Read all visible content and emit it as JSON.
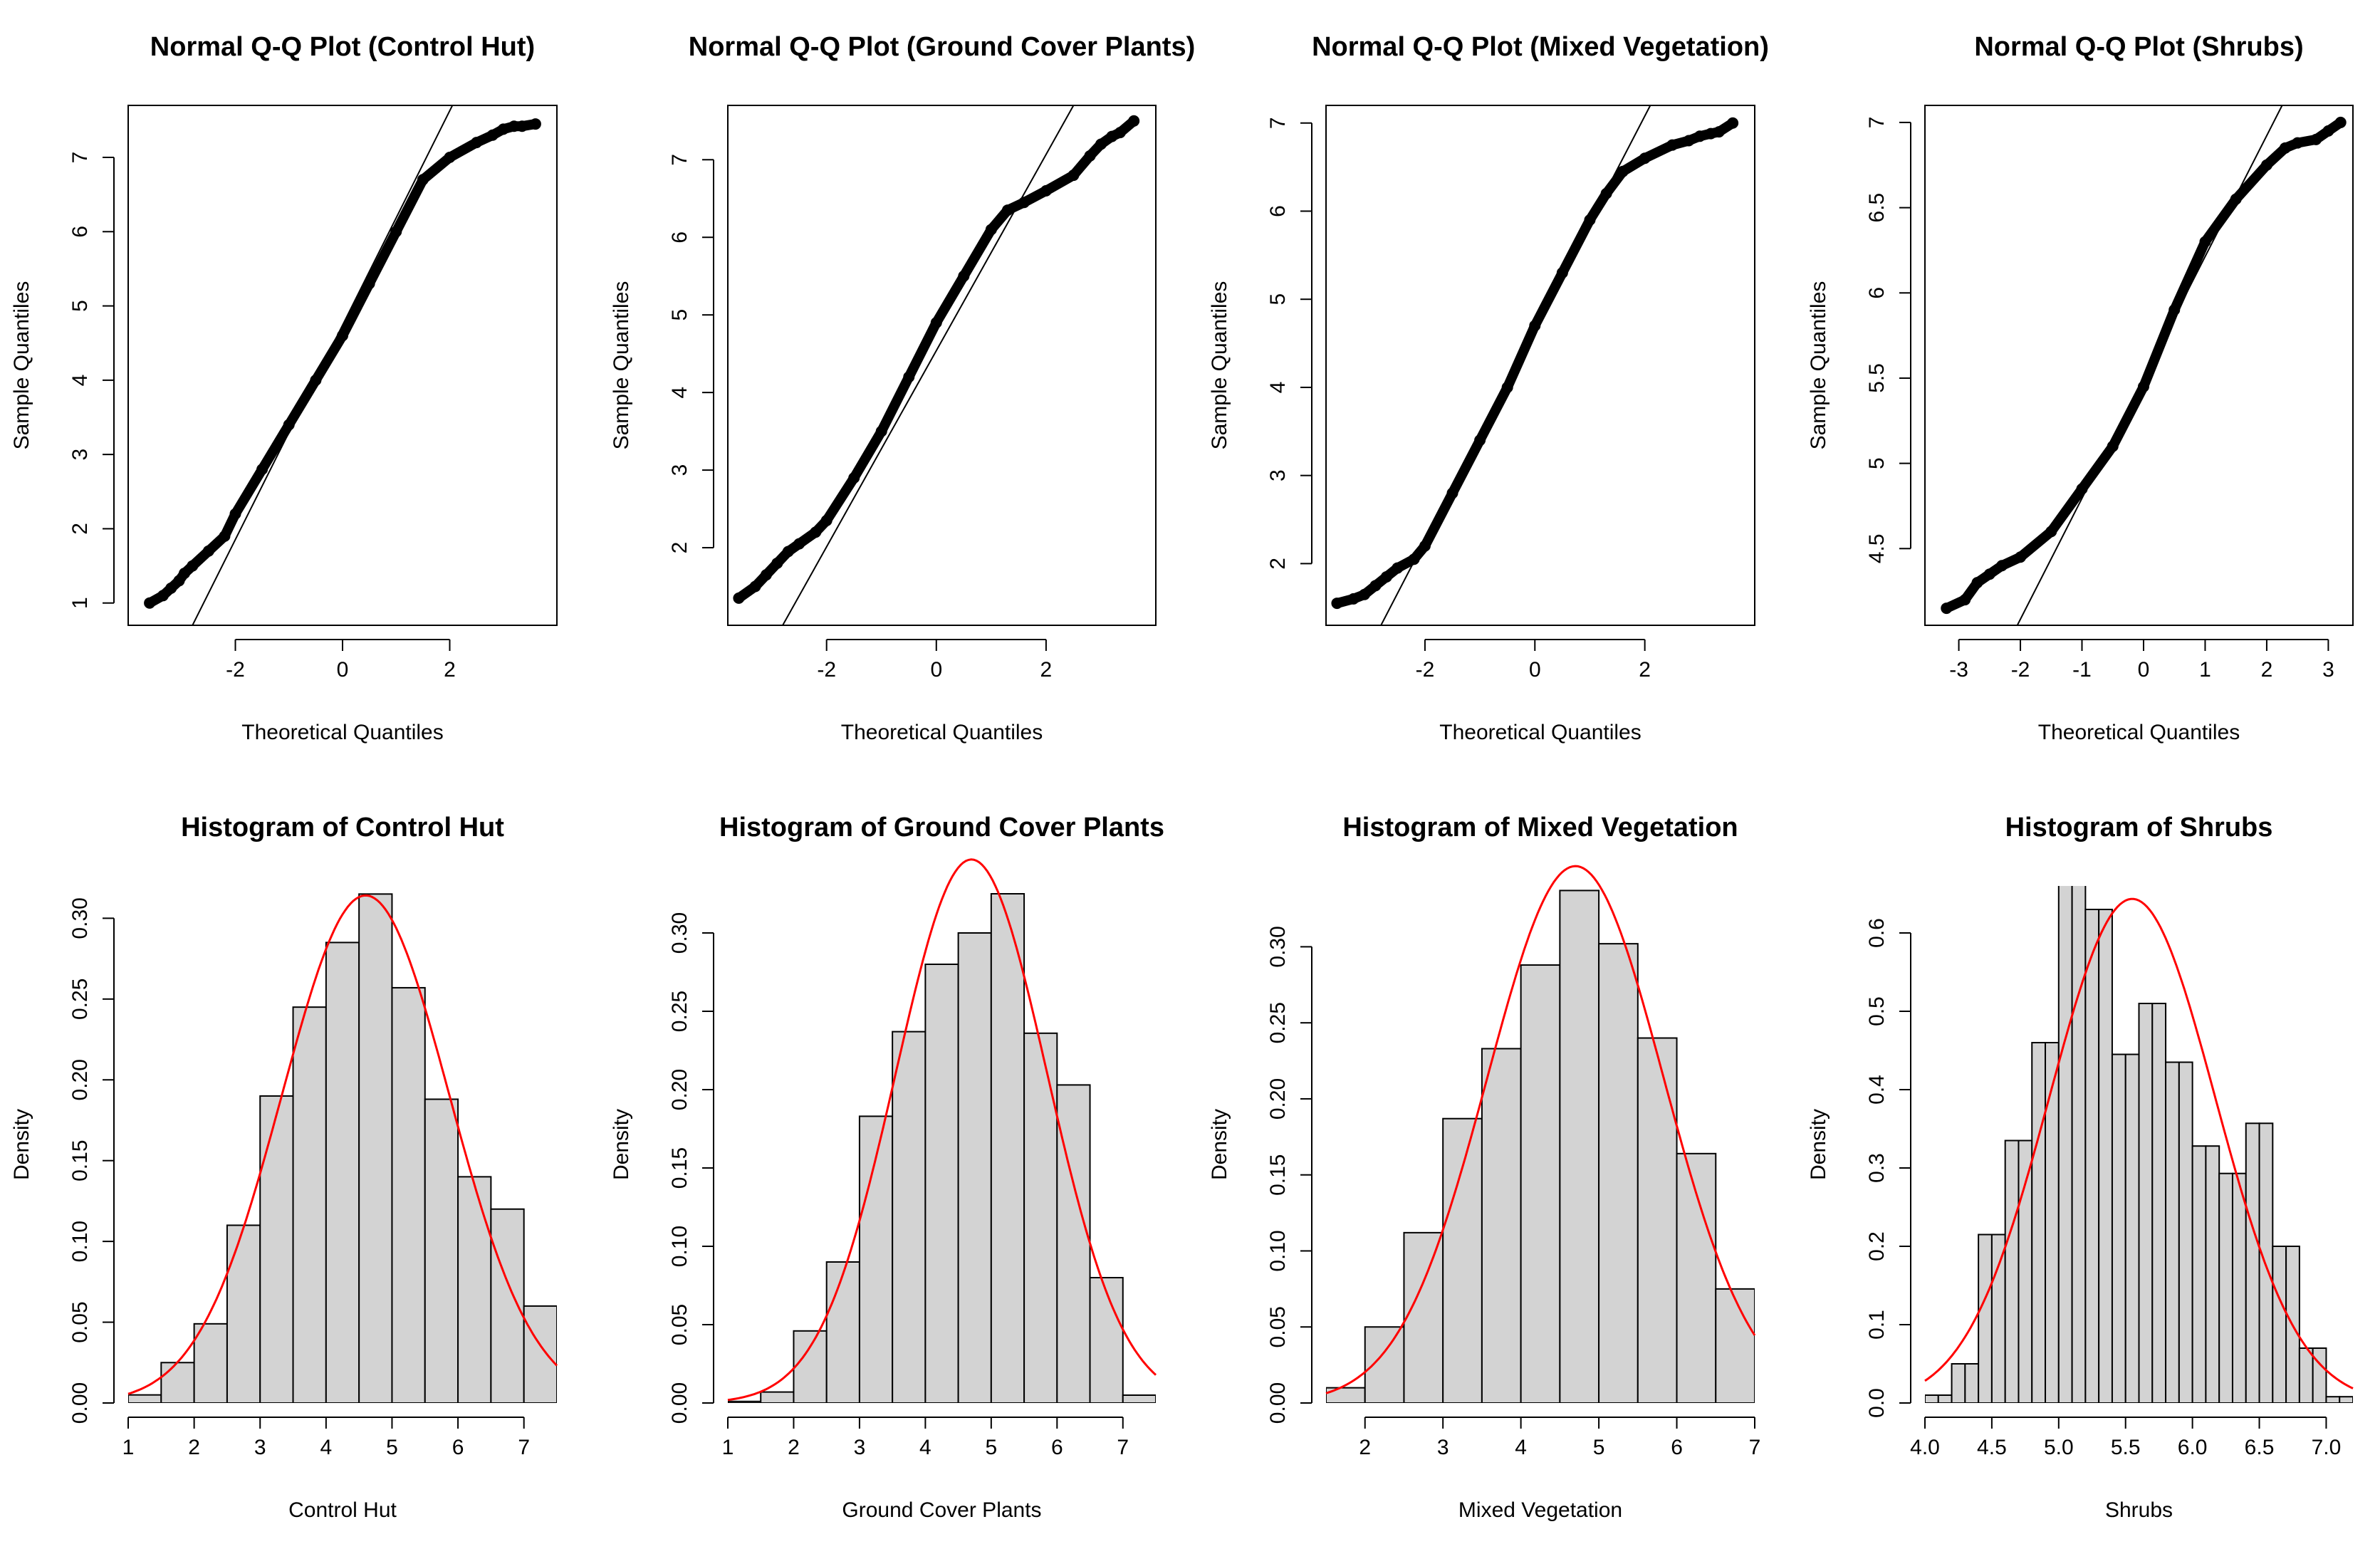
{
  "chart_data": [
    {
      "type": "scatter",
      "title": "Normal Q-Q Plot (Control Hut)",
      "xlabel": "Theoretical Quantiles",
      "ylabel": "Sample Quantiles",
      "xlim": [
        -4.0,
        4.0
      ],
      "ylim": [
        0.7,
        7.7
      ],
      "xticks": [
        -2,
        0,
        2
      ],
      "yticks": [
        1,
        2,
        3,
        4,
        5,
        6,
        7
      ],
      "line": {
        "x": [
          -2.8,
          2.05
        ],
        "y": [
          0.7,
          7.7
        ]
      },
      "points_x": [
        -3.6,
        -3.35,
        -3.2,
        -3.05,
        -2.95,
        -2.8,
        -2.5,
        -2.2,
        -2.0,
        -1.5,
        -1.0,
        -0.5,
        0.0,
        0.5,
        1.0,
        1.5,
        2.0,
        2.5,
        2.8,
        3.0,
        3.2,
        3.35,
        3.6
      ],
      "points_y": [
        1.0,
        1.1,
        1.2,
        1.3,
        1.4,
        1.5,
        1.7,
        1.9,
        2.2,
        2.8,
        3.4,
        4.0,
        4.6,
        5.3,
        6.0,
        6.7,
        7.0,
        7.2,
        7.3,
        7.38,
        7.42,
        7.42,
        7.45
      ]
    },
    {
      "type": "scatter",
      "title": "Normal Q-Q Plot (Ground Cover Plants)",
      "xlabel": "Theoretical Quantiles",
      "ylabel": "Sample Quantiles",
      "xlim": [
        -3.8,
        4.0
      ],
      "ylim": [
        1.0,
        7.7
      ],
      "xticks": [
        -2,
        0,
        2
      ],
      "yticks": [
        2,
        3,
        4,
        5,
        6,
        7
      ],
      "line": {
        "x": [
          -2.8,
          2.5
        ],
        "y": [
          1.0,
          7.7
        ]
      },
      "points_x": [
        -3.6,
        -3.3,
        -3.1,
        -2.9,
        -2.7,
        -2.5,
        -2.2,
        -2.0,
        -1.5,
        -1.0,
        -0.5,
        0.0,
        0.5,
        1.0,
        1.3,
        1.6,
        2.0,
        2.5,
        2.8,
        3.0,
        3.2,
        3.35,
        3.6
      ],
      "points_y": [
        1.35,
        1.5,
        1.65,
        1.8,
        1.95,
        2.05,
        2.2,
        2.35,
        2.9,
        3.5,
        4.2,
        4.9,
        5.5,
        6.1,
        6.35,
        6.45,
        6.6,
        6.8,
        7.05,
        7.2,
        7.3,
        7.35,
        7.5
      ]
    },
    {
      "type": "scatter",
      "title": "Normal Q-Q Plot (Mixed Vegetation)",
      "xlabel": "Theoretical Quantiles",
      "ylabel": "Sample Quantiles",
      "xlim": [
        -3.8,
        4.0
      ],
      "ylim": [
        1.3,
        7.2
      ],
      "xticks": [
        -2,
        0,
        2
      ],
      "yticks": [
        2,
        3,
        4,
        5,
        6,
        7
      ],
      "line": {
        "x": [
          -2.8,
          2.1
        ],
        "y": [
          1.3,
          7.2
        ]
      },
      "points_x": [
        -3.6,
        -3.3,
        -3.1,
        -2.9,
        -2.7,
        -2.5,
        -2.2,
        -2.0,
        -1.5,
        -1.0,
        -0.5,
        0.0,
        0.5,
        1.0,
        1.3,
        1.6,
        2.0,
        2.5,
        2.8,
        3.0,
        3.2,
        3.35,
        3.6
      ],
      "points_y": [
        1.55,
        1.6,
        1.65,
        1.75,
        1.85,
        1.95,
        2.05,
        2.2,
        2.8,
        3.4,
        4.0,
        4.7,
        5.3,
        5.9,
        6.2,
        6.45,
        6.6,
        6.75,
        6.8,
        6.85,
        6.88,
        6.9,
        7.0
      ]
    },
    {
      "type": "scatter",
      "title": "Normal Q-Q Plot (Shrubs)",
      "xlabel": "Theoretical Quantiles",
      "ylabel": "Sample Quantiles",
      "xlim": [
        -3.55,
        3.4
      ],
      "ylim": [
        4.05,
        7.1
      ],
      "xticks": [
        -3,
        -2,
        -1,
        0,
        1,
        2,
        3
      ],
      "yticks": [
        4.5,
        5.0,
        5.5,
        6.0,
        6.5,
        7.0
      ],
      "line": {
        "x": [
          -2.05,
          2.25
        ],
        "y": [
          4.05,
          7.1
        ]
      },
      "points_x": [
        -3.2,
        -2.9,
        -2.7,
        -2.5,
        -2.3,
        -2.0,
        -1.5,
        -1.0,
        -0.5,
        0.0,
        0.5,
        1.0,
        1.5,
        2.0,
        2.3,
        2.5,
        2.8,
        3.0,
        3.2
      ],
      "points_y": [
        4.15,
        4.2,
        4.3,
        4.35,
        4.4,
        4.45,
        4.6,
        4.85,
        5.1,
        5.45,
        5.9,
        6.3,
        6.55,
        6.75,
        6.85,
        6.88,
        6.9,
        6.95,
        7.0
      ]
    },
    {
      "type": "bar",
      "title": "Histogram of Control Hut",
      "xlabel": "Control Hut",
      "ylabel": "Density",
      "xlim": [
        1.0,
        7.5
      ],
      "ylim": [
        0.0,
        0.32
      ],
      "xticks": [
        1,
        2,
        3,
        4,
        5,
        6,
        7
      ],
      "yticks": [
        0.0,
        0.05,
        0.1,
        0.15,
        0.2,
        0.25,
        0.3
      ],
      "ytick_labels": [
        "0.00",
        "0.05",
        "0.10",
        "0.15",
        "0.20",
        "0.25",
        "0.30"
      ],
      "bin_edges": [
        1.0,
        1.5,
        2.0,
        2.5,
        3.0,
        3.5,
        4.0,
        4.5,
        5.0,
        5.5,
        6.0,
        6.5,
        7.0,
        7.5
      ],
      "values": [
        0.005,
        0.025,
        0.049,
        0.11,
        0.19,
        0.245,
        0.285,
        0.315,
        0.257,
        0.188,
        0.14,
        0.12,
        0.06
      ],
      "normal_curve": {
        "mean": 4.6,
        "sd": 1.27,
        "color": "#ff0000"
      },
      "bar_color": "#d3d3d3"
    },
    {
      "type": "bar",
      "title": "Histogram of Ground Cover Plants",
      "xlabel": "Ground Cover Plants",
      "ylabel": "Density",
      "xlim": [
        1.0,
        7.5
      ],
      "ylim": [
        0.0,
        0.33
      ],
      "xticks": [
        1,
        2,
        3,
        4,
        5,
        6,
        7
      ],
      "yticks": [
        0.0,
        0.05,
        0.1,
        0.15,
        0.2,
        0.25,
        0.3
      ],
      "ytick_labels": [
        "0.00",
        "0.05",
        "0.10",
        "0.15",
        "0.20",
        "0.25",
        "0.30"
      ],
      "bin_edges": [
        1.0,
        1.5,
        2.0,
        2.5,
        3.0,
        3.5,
        4.0,
        4.5,
        5.0,
        5.5,
        6.0,
        6.5,
        7.0,
        7.5
      ],
      "values": [
        0.001,
        0.007,
        0.046,
        0.09,
        0.183,
        0.237,
        0.28,
        0.3,
        0.325,
        0.236,
        0.203,
        0.08,
        0.005
      ],
      "normal_curve": {
        "mean": 4.7,
        "sd": 1.15,
        "color": "#ff0000"
      },
      "bar_color": "#d3d3d3"
    },
    {
      "type": "bar",
      "title": "Histogram of Mixed Vegetation",
      "xlabel": "Mixed Vegetation",
      "ylabel": "Density",
      "xlim": [
        1.5,
        7.0
      ],
      "ylim": [
        0.0,
        0.34
      ],
      "xticks": [
        2,
        3,
        4,
        5,
        6,
        7
      ],
      "yticks": [
        0.0,
        0.05,
        0.1,
        0.15,
        0.2,
        0.25,
        0.3
      ],
      "ytick_labels": [
        "0.00",
        "0.05",
        "0.10",
        "0.15",
        "0.20",
        "0.25",
        "0.30"
      ],
      "bin_edges": [
        1.5,
        2.0,
        2.5,
        3.0,
        3.5,
        4.0,
        4.5,
        5.0,
        5.5,
        6.0,
        6.5,
        7.0
      ],
      "values": [
        0.01,
        0.05,
        0.112,
        0.187,
        0.233,
        0.288,
        0.337,
        0.302,
        0.24,
        0.164,
        0.075
      ],
      "normal_curve": {
        "mean": 4.7,
        "sd": 1.13,
        "color": "#ff0000"
      },
      "bar_color": "#d3d3d3"
    },
    {
      "type": "bar",
      "title": "Histogram of Shrubs",
      "xlabel": "Shrubs",
      "ylabel": "Density",
      "xlim": [
        4.0,
        7.2
      ],
      "ylim": [
        0.0,
        0.66
      ],
      "xticks": [
        4.0,
        4.5,
        5.0,
        5.5,
        6.0,
        6.5,
        7.0
      ],
      "xtick_labels": [
        "4.0",
        "4.5",
        "5.0",
        "5.5",
        "6.0",
        "6.5",
        "7.0"
      ],
      "yticks": [
        0.0,
        0.1,
        0.2,
        0.3,
        0.4,
        0.5,
        0.6
      ],
      "ytick_labels": [
        "0.0",
        "0.1",
        "0.2",
        "0.3",
        "0.4",
        "0.5",
        "0.6"
      ],
      "bin_edges": [
        4.0,
        4.1,
        4.2,
        4.3,
        4.4,
        4.5,
        4.6,
        4.7,
        4.8,
        4.9,
        5.0,
        5.1,
        5.2,
        5.3,
        5.4,
        5.5,
        5.6,
        5.7,
        5.8,
        5.9,
        6.0,
        6.1,
        6.2,
        6.3,
        6.4,
        6.5,
        6.6,
        6.7,
        6.8,
        6.9,
        7.0,
        7.1,
        7.2
      ],
      "values": [
        0.01,
        0.01,
        0.05,
        0.05,
        0.215,
        0.215,
        0.335,
        0.335,
        0.46,
        0.46,
        0.665,
        0.665,
        0.63,
        0.63,
        0.445,
        0.445,
        0.51,
        0.51,
        0.435,
        0.435,
        0.328,
        0.328,
        0.293,
        0.293,
        0.357,
        0.357,
        0.2,
        0.2,
        0.07,
        0.07,
        0.008,
        0.008
      ],
      "normal_curve": {
        "mean": 5.55,
        "sd": 0.62,
        "color": "#ff0000"
      },
      "bar_color": "#d3d3d3"
    }
  ]
}
